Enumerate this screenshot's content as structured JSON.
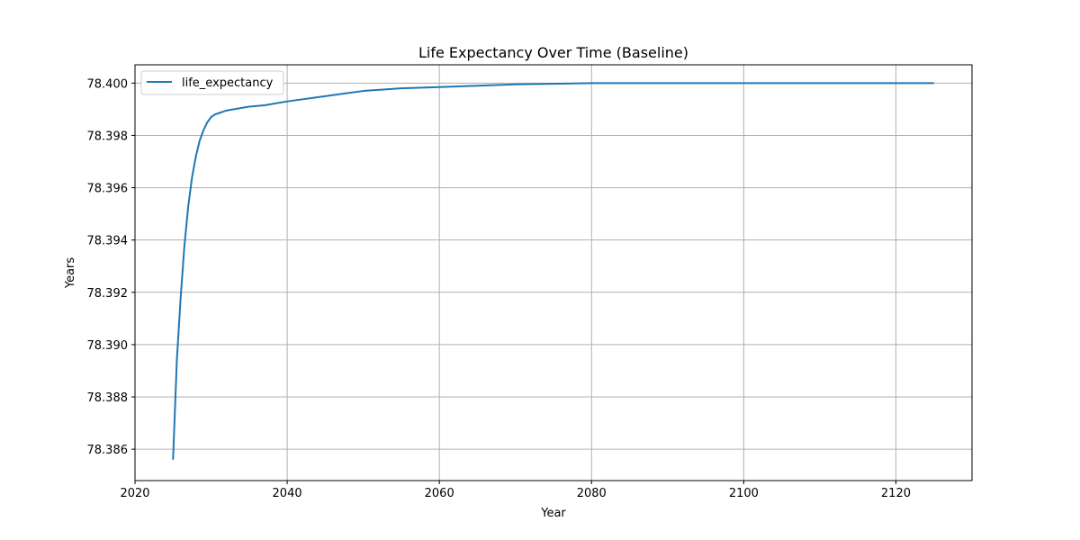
{
  "chart_data": {
    "type": "line",
    "title": "Life Expectancy Over Time (Baseline)",
    "xlabel": "Year",
    "ylabel": "Years",
    "xlim": [
      2020,
      2130
    ],
    "ylim": [
      78.3848,
      78.4007
    ],
    "xticks": [
      2020,
      2040,
      2060,
      2080,
      2100,
      2120
    ],
    "yticks": [
      78.386,
      78.388,
      78.39,
      78.392,
      78.394,
      78.396,
      78.398,
      78.4
    ],
    "ytick_labels": [
      "78.386",
      "78.388",
      "78.390",
      "78.392",
      "78.394",
      "78.396",
      "78.398",
      "78.400"
    ],
    "grid": true,
    "legend_position": "top-left",
    "series": [
      {
        "name": "life_expectancy",
        "color": "#1f77b4",
        "x": [
          2025,
          2025.5,
          2026,
          2026.5,
          2027,
          2027.5,
          2028,
          2028.5,
          2029,
          2029.5,
          2030,
          2030.5,
          2031,
          2031.5,
          2032,
          2033,
          2034,
          2035,
          2037,
          2040,
          2045,
          2050,
          2055,
          2060,
          2065,
          2070,
          2080,
          2090,
          2100,
          2110,
          2125
        ],
        "y": [
          78.3856,
          78.3894,
          78.3918,
          78.3938,
          78.3953,
          78.3964,
          78.3972,
          78.3978,
          78.3982,
          78.3985,
          78.3987,
          78.3988,
          78.39885,
          78.3989,
          78.39895,
          78.399,
          78.39905,
          78.3991,
          78.39915,
          78.3993,
          78.3995,
          78.3997,
          78.3998,
          78.39985,
          78.3999,
          78.39995,
          78.4,
          78.4,
          78.4,
          78.4,
          78.4
        ]
      }
    ]
  }
}
